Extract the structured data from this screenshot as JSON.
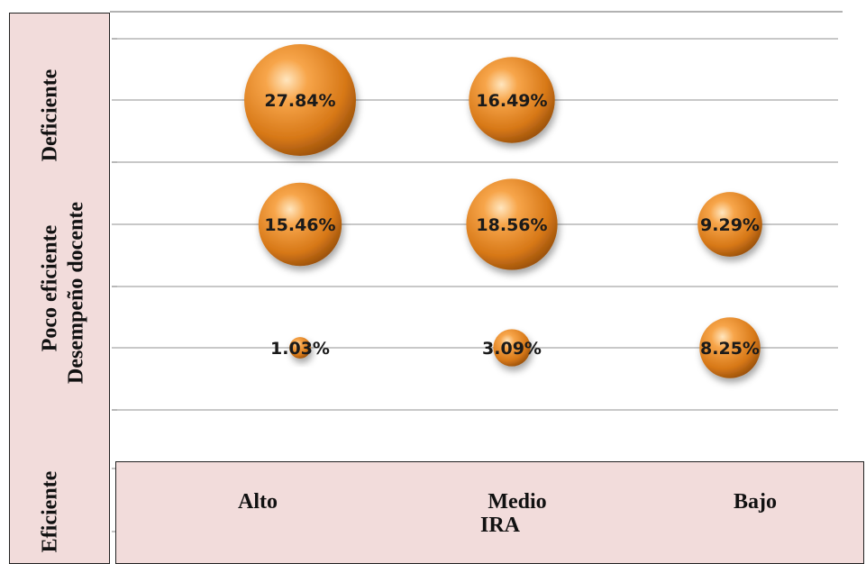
{
  "chart_data": {
    "type": "scatter",
    "subtype": "bubble",
    "x_categories": [
      "Alto",
      "Medio",
      "Bajo"
    ],
    "y_categories": [
      "Deficiente",
      "Poco eficiente",
      "Eficiente"
    ],
    "xlabel": "IRA",
    "ylabel": "Desempeño docente",
    "points": [
      {
        "x": "Alto",
        "y": "Deficiente",
        "value": 27.84,
        "label": "27.84%"
      },
      {
        "x": "Medio",
        "y": "Deficiente",
        "value": 16.49,
        "label": "16.49%"
      },
      {
        "x": "Alto",
        "y": "Poco eficiente",
        "value": 15.46,
        "label": "15.46%"
      },
      {
        "x": "Medio",
        "y": "Poco eficiente",
        "value": 18.56,
        "label": "18.56%"
      },
      {
        "x": "Bajo",
        "y": "Poco eficiente",
        "value": 9.29,
        "label": "9.29%"
      },
      {
        "x": "Alto",
        "y": "Eficiente",
        "value": 1.03,
        "label": "1.03%"
      },
      {
        "x": "Medio",
        "y": "Eficiente",
        "value": 3.09,
        "label": "3.09%"
      },
      {
        "x": "Bajo",
        "y": "Eficiente",
        "value": 8.25,
        "label": "8.25%"
      }
    ],
    "grid": true,
    "colors": {
      "bubble": "#e8892a",
      "bubble_highlight": "#fde0b0",
      "bubble_shadow": "#9a4f0c",
      "panel": "#f2dcdb"
    }
  }
}
